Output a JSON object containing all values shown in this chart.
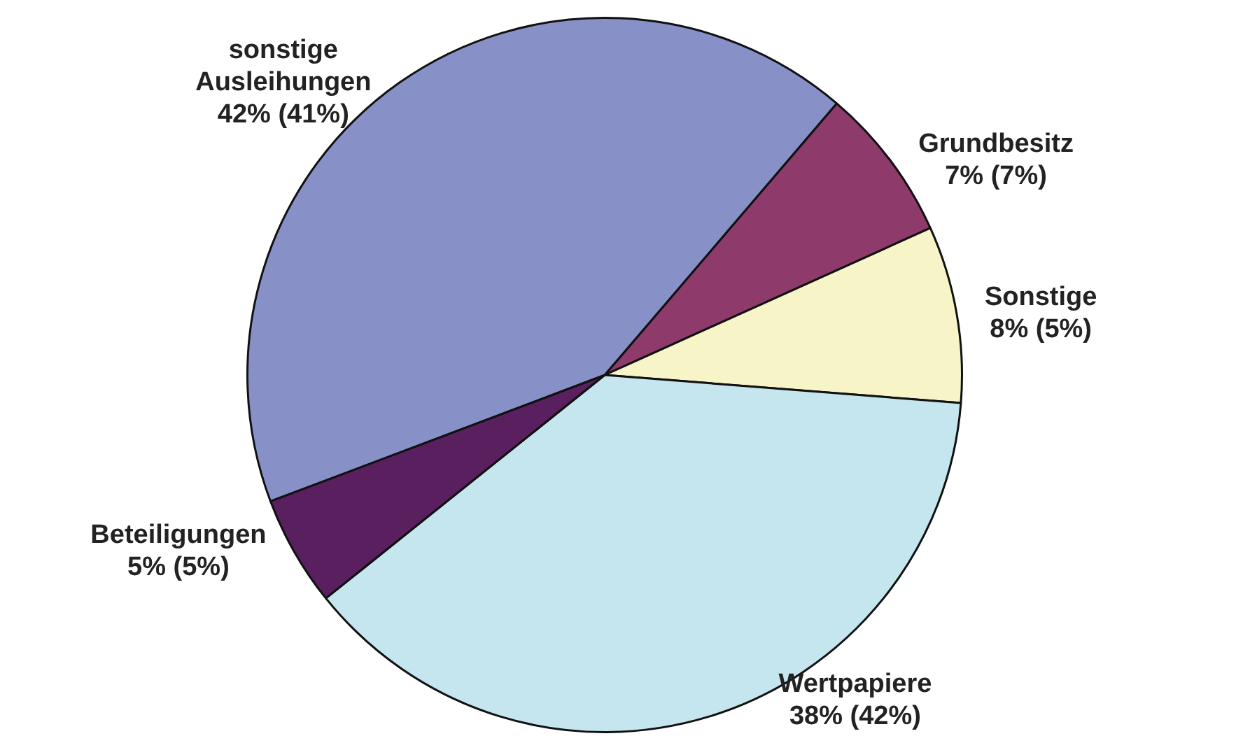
{
  "chart_data": {
    "type": "pie",
    "categories": [
      "Grundbesitz",
      "Sonstige",
      "Wertpapiere",
      "Beteiligungen",
      "sonstige Ausleihungen"
    ],
    "values": [
      7,
      8,
      38,
      5,
      42
    ],
    "colors": [
      "#8e3a6a",
      "#f7f5c8",
      "#c5e6ee",
      "#5a1f5e",
      "#8791c8"
    ],
    "value_labels": [
      "7% (7%)",
      "8% (5%)",
      "38% (42%)",
      "5% (5%)",
      "42% (41%)"
    ]
  }
}
